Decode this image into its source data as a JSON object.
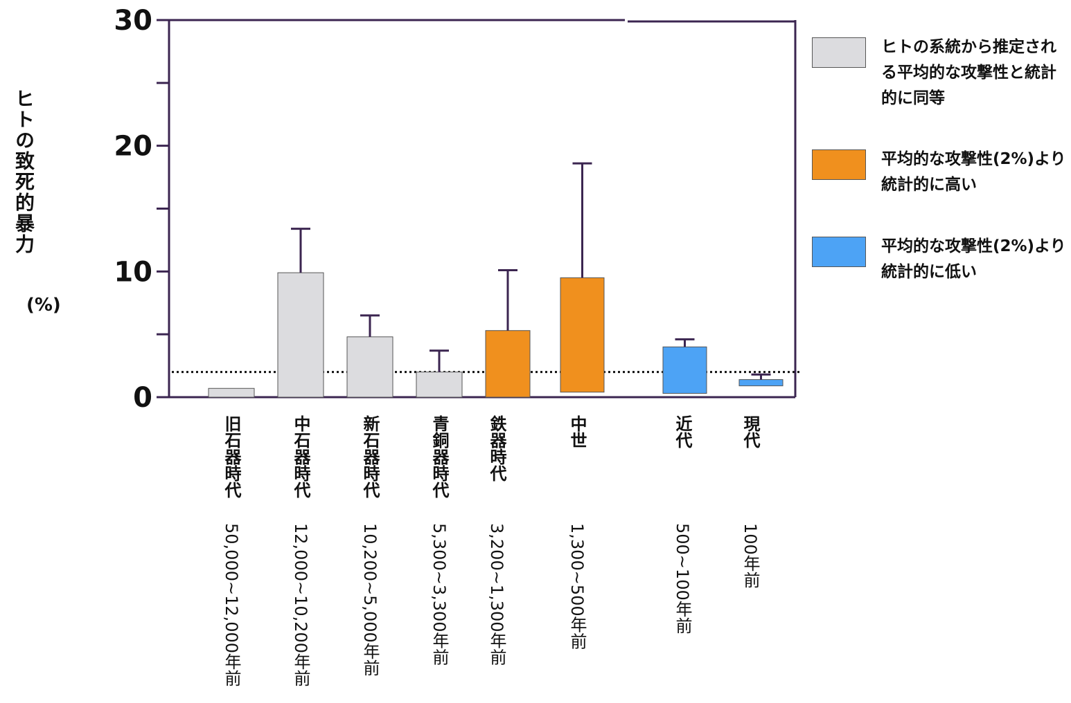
{
  "chart_data": {
    "type": "bar",
    "ylabel": "ヒトの致死的暴力",
    "yunit": "(%)",
    "ylim": [
      0,
      30
    ],
    "yticks": [
      0,
      10,
      20,
      30
    ],
    "y_minor_ticks": [
      5,
      15,
      25
    ],
    "reference_line": 2,
    "categories": [
      {
        "era": "旧石器時代",
        "period": "50,000~12,000年前"
      },
      {
        "era": "中石器時代",
        "period": "12,000~10,200年前"
      },
      {
        "era": "新石器時代",
        "period": "10,200~5,000年前"
      },
      {
        "era": "青銅器時代",
        "period": "5,300~3,300年前"
      },
      {
        "era": "鉄器時代",
        "period": "3,200~1,300年前"
      },
      {
        "era": "中世",
        "period": "1,300~500年前"
      },
      {
        "era": "近代",
        "period": "500~100年前"
      },
      {
        "era": "現代",
        "period": "100年前"
      }
    ],
    "bars": [
      {
        "low": 0.0,
        "high": 0.7,
        "error_top": null,
        "group": "equal"
      },
      {
        "low": 0.0,
        "high": 9.9,
        "error_top": 13.4,
        "group": "equal"
      },
      {
        "low": 0.0,
        "high": 4.8,
        "error_top": 6.5,
        "group": "equal"
      },
      {
        "low": 0.0,
        "high": 2.0,
        "error_top": 3.7,
        "group": "equal"
      },
      {
        "low": 0.0,
        "high": 5.3,
        "error_top": 10.1,
        "group": "higher"
      },
      {
        "low": 0.4,
        "high": 9.5,
        "error_top": 18.6,
        "group": "higher"
      },
      {
        "low": 0.3,
        "high": 4.0,
        "error_top": 4.6,
        "group": "lower"
      },
      {
        "low": 0.9,
        "high": 1.4,
        "error_top": 1.8,
        "group": "lower"
      }
    ],
    "legend": [
      {
        "key": "equal",
        "label": "ヒトの系統から推定される平均的な攻撃性と統計的に同等",
        "color": "#dcdcdf"
      },
      {
        "key": "higher",
        "label": "平均的な攻撃性(2%)より統計的に高い",
        "color": "#f0901e"
      },
      {
        "key": "lower",
        "label": "平均的な攻撃性(2%)より統計的に低い",
        "color": "#4da3f5"
      }
    ],
    "frame_color": "#3b2550",
    "legend_placement": "right"
  }
}
